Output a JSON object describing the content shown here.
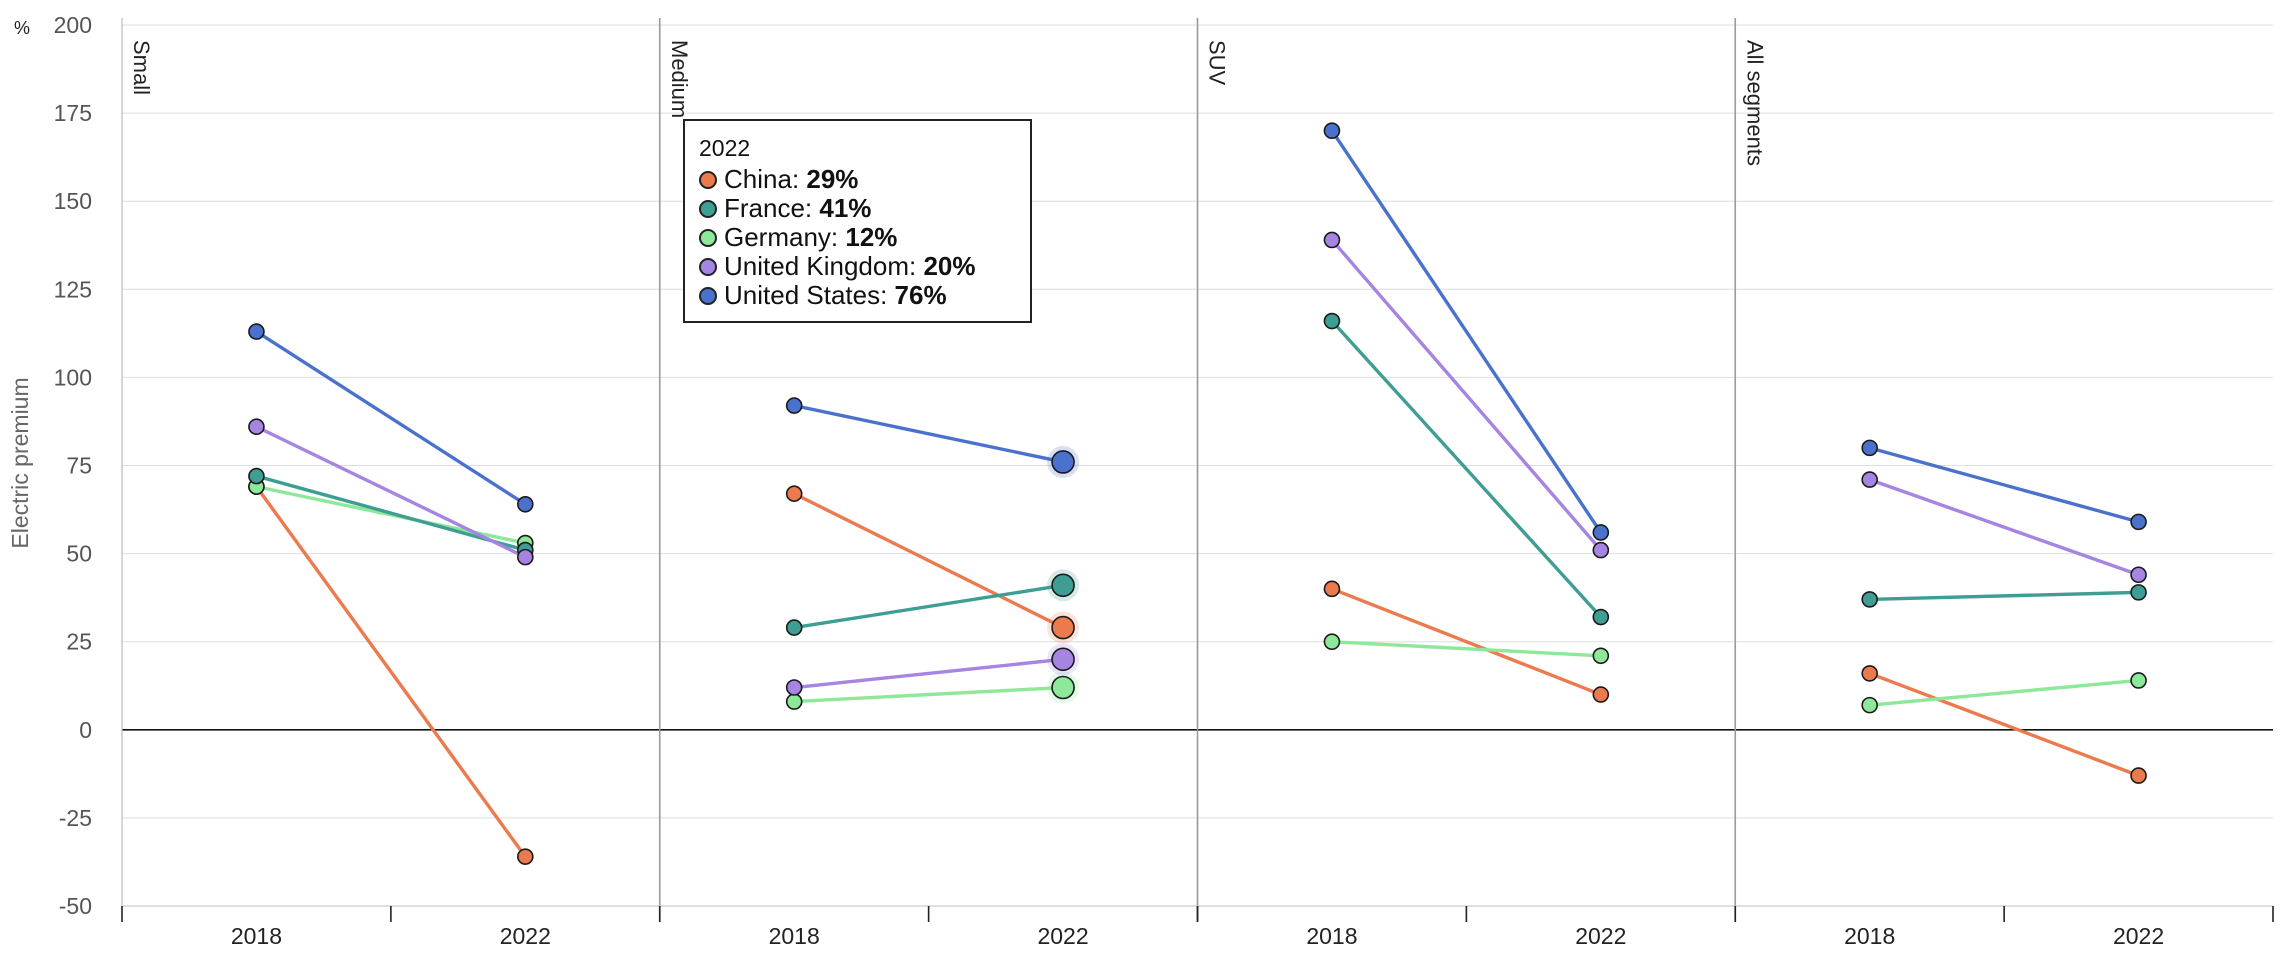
{
  "chart_data": {
    "type": "line",
    "unit": "%",
    "ylabel": "Electric premium",
    "ylim": [
      -50,
      200
    ],
    "yticks": [
      -50,
      -25,
      0,
      25,
      50,
      75,
      100,
      125,
      150,
      175,
      200
    ],
    "grid": true,
    "categories": [
      "2018",
      "2022"
    ],
    "panels": [
      {
        "name": "Small",
        "series": [
          {
            "name": "China",
            "values": [
              69,
              -36
            ]
          },
          {
            "name": "France",
            "values": [
              72,
              51
            ]
          },
          {
            "name": "Germany",
            "values": [
              69,
              53
            ]
          },
          {
            "name": "United Kingdom",
            "values": [
              86,
              49
            ]
          },
          {
            "name": "United States",
            "values": [
              113,
              64
            ]
          }
        ]
      },
      {
        "name": "Medium",
        "series": [
          {
            "name": "China",
            "values": [
              67,
              29
            ]
          },
          {
            "name": "France",
            "values": [
              29,
              41
            ]
          },
          {
            "name": "Germany",
            "values": [
              8,
              12
            ]
          },
          {
            "name": "United Kingdom",
            "values": [
              12,
              20
            ]
          },
          {
            "name": "United States",
            "values": [
              92,
              76
            ]
          }
        ]
      },
      {
        "name": "SUV",
        "series": [
          {
            "name": "China",
            "values": [
              40,
              10
            ]
          },
          {
            "name": "France",
            "values": [
              116,
              32
            ]
          },
          {
            "name": "Germany",
            "values": [
              25,
              21
            ]
          },
          {
            "name": "United Kingdom",
            "values": [
              139,
              51
            ]
          },
          {
            "name": "United States",
            "values": [
              170,
              56
            ]
          }
        ]
      },
      {
        "name": "All segments",
        "series": [
          {
            "name": "China",
            "values": [
              16,
              -13
            ]
          },
          {
            "name": "France",
            "values": [
              37,
              39
            ]
          },
          {
            "name": "Germany",
            "values": [
              7,
              14
            ]
          },
          {
            "name": "United Kingdom",
            "values": [
              71,
              44
            ]
          },
          {
            "name": "United States",
            "values": [
              80,
              59
            ]
          }
        ]
      }
    ],
    "colors": {
      "China": "#ec7a4f",
      "France": "#3f9e93",
      "Germany": "#8ee89a",
      "United Kingdom": "#a684e2",
      "United States": "#4a72cd"
    },
    "highlight": {
      "panel": "Medium",
      "category": "2022"
    },
    "tooltip": {
      "title": "2022",
      "rows": [
        {
          "country": "China",
          "value": "29%"
        },
        {
          "country": "France",
          "value": "41%"
        },
        {
          "country": "Germany",
          "value": "12%"
        },
        {
          "country": "United Kingdom",
          "value": "20%"
        },
        {
          "country": "United States",
          "value": "76%"
        }
      ]
    }
  }
}
